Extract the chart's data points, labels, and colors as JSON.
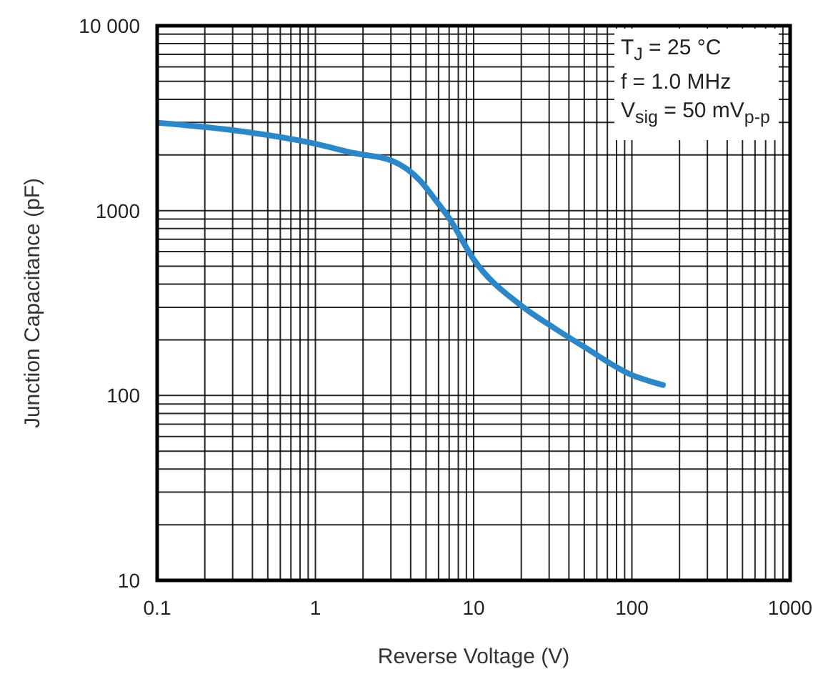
{
  "chart_data": {
    "type": "line",
    "xlabel": "Reverse Voltage (V)",
    "ylabel": "Junction Capacitance (pF)",
    "annotations": [
      "T$_{J}$ = 25 °C",
      "f = 1.0 MHz",
      "V$_{sig}$ = 50 mV$_{p-p}$"
    ],
    "x": [
      0.1,
      0.285,
      1,
      1.74,
      3.05,
      4.6,
      5.7,
      7.0,
      10,
      20,
      32.7,
      50,
      98,
      157
    ],
    "series": [
      {
        "color": "#2b87c8",
        "values": [
          2985,
          2740,
          2300,
          2050,
          1860,
          1450,
          1150,
          910,
          545,
          306,
          230,
          183,
          130,
          114
        ]
      }
    ],
    "log": "xy",
    "xlim": [
      0.1,
      1000
    ],
    "ylim": [
      10,
      10000
    ],
    "xticks": [
      0.1,
      1,
      10,
      100,
      1000
    ],
    "yticks": [
      10,
      100,
      1000,
      {
        "value": 10000,
        "label": "10 000"
      }
    ],
    "grid": true,
    "marker": "none",
    "line_style": "solid"
  }
}
